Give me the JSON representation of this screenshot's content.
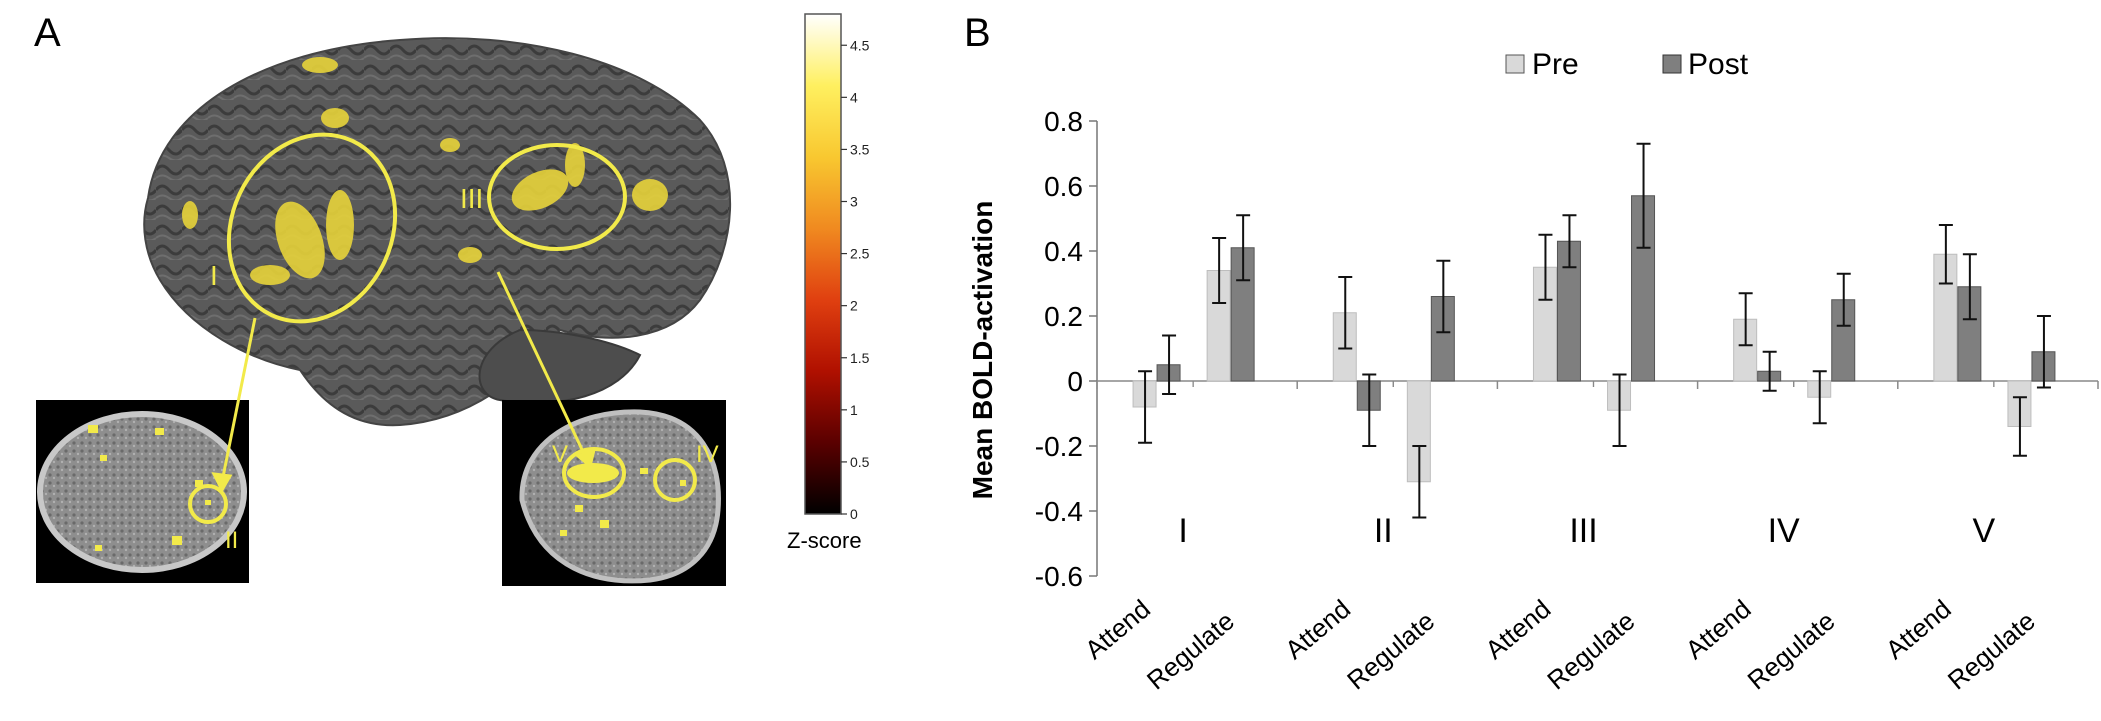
{
  "panel_a": {
    "letter": "A",
    "colorbar": {
      "label": "Z-score",
      "ticks": [
        "0",
        "0.5",
        "1",
        "1.5",
        "2",
        "2.5",
        "3",
        "3.5",
        "4",
        "4.5"
      ],
      "tick_values": [
        0,
        0.5,
        1,
        1.5,
        2,
        2.5,
        3,
        3.5,
        4,
        4.5
      ],
      "max": 4.8,
      "colormap": [
        "#000000",
        "#5a0000",
        "#b01000",
        "#e04010",
        "#f08a20",
        "#f8c830",
        "#fff060",
        "#ffffff"
      ]
    },
    "region_labels": [
      "I",
      "II",
      "III",
      "IV",
      "V"
    ],
    "colors": {
      "brain_surface": "#555555",
      "activation": "#f0e040",
      "roi_circle": "#f2ea4a"
    }
  },
  "panel_b": {
    "letter": "B"
  },
  "chart_data": {
    "type": "bar",
    "ylabel": "Mean BOLD-activation",
    "ylim": [
      -0.6,
      0.8
    ],
    "yticks": [
      -0.6,
      -0.4,
      -0.2,
      0,
      0.2,
      0.4,
      0.6,
      0.8
    ],
    "ytick_labels": [
      "-0.6",
      "-0.4",
      "-0.2",
      "0",
      "0.2",
      "0.4",
      "0.6",
      "0.8"
    ],
    "groups": [
      "I",
      "II",
      "III",
      "IV",
      "V"
    ],
    "conditions": [
      "Attend",
      "Regulate"
    ],
    "legend_position": "top",
    "series": [
      {
        "name": "Pre",
        "color": "#d9d9d9",
        "values": [
          [
            -0.08,
            0.34
          ],
          [
            0.21,
            -0.31
          ],
          [
            0.35,
            -0.09
          ],
          [
            0.19,
            -0.05
          ],
          [
            0.39,
            -0.14
          ]
        ],
        "errors": [
          [
            0.11,
            0.1
          ],
          [
            0.11,
            0.11
          ],
          [
            0.1,
            0.11
          ],
          [
            0.08,
            0.08
          ],
          [
            0.09,
            0.09
          ]
        ]
      },
      {
        "name": "Post",
        "color": "#7f7f7f",
        "values": [
          [
            0.05,
            0.41
          ],
          [
            -0.09,
            0.26
          ],
          [
            0.43,
            0.57
          ],
          [
            0.03,
            0.25
          ],
          [
            0.29,
            0.09
          ]
        ],
        "errors": [
          [
            0.09,
            0.1
          ],
          [
            0.11,
            0.11
          ],
          [
            0.08,
            0.16
          ],
          [
            0.06,
            0.08
          ],
          [
            0.1,
            0.11
          ]
        ]
      }
    ]
  }
}
